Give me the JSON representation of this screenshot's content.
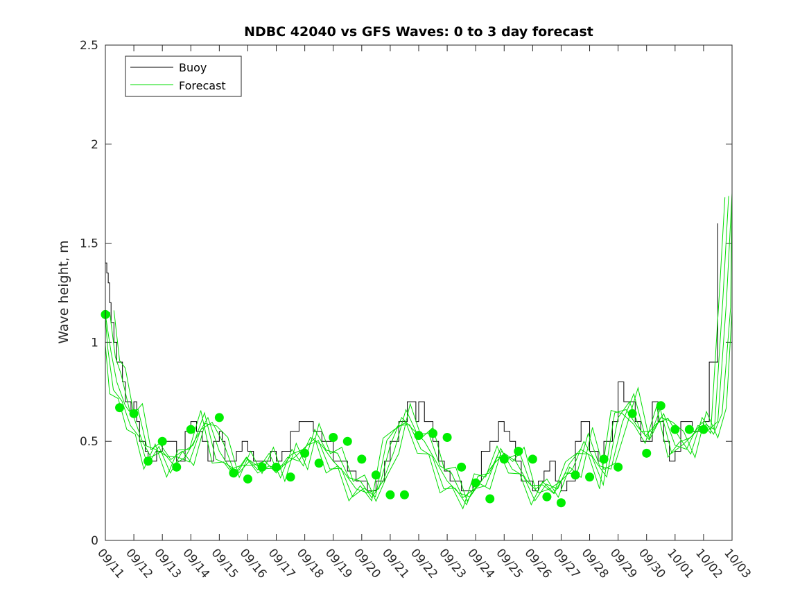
{
  "chart_data": {
    "type": "line",
    "title": "NDBC 42040 vs GFS Waves: 0 to 3 day forecast",
    "xlabel": "",
    "ylabel": "Wave height, m",
    "ylim": [
      0,
      2.5
    ],
    "yticks": [
      "0",
      "0.5",
      "1",
      "1.5",
      "2",
      "2.5"
    ],
    "yticks_values": [
      0,
      0.5,
      1,
      1.5,
      2,
      2.5
    ],
    "xlim_days": [
      0,
      22
    ],
    "xticks": [
      "09/11",
      "09/12",
      "09/13",
      "09/14",
      "09/15",
      "09/16",
      "09/17",
      "09/18",
      "09/19",
      "09/20",
      "09/21",
      "09/22",
      "09/23",
      "09/24",
      "09/25",
      "09/26",
      "09/27",
      "09/28",
      "09/29",
      "09/30",
      "10/01",
      "10/02",
      "10/03"
    ],
    "legend": {
      "position": "top-left",
      "entries": [
        {
          "label": "Buoy",
          "color": "#000000"
        },
        {
          "label": "Forecast",
          "color": "#00dd00"
        }
      ]
    },
    "colors": {
      "buoy": "#000000",
      "forecast": "#00dd00",
      "marker": "#00ee00"
    },
    "series": [
      {
        "name": "Buoy",
        "x": [
          0,
          0.05,
          0.1,
          0.15,
          0.2,
          0.3,
          0.4,
          0.5,
          0.6,
          0.7,
          0.8,
          0.9,
          1.0,
          1.1,
          1.2,
          1.3,
          1.4,
          1.5,
          1.6,
          1.8,
          2.0,
          2.2,
          2.5,
          2.8,
          3.0,
          3.2,
          3.4,
          3.6,
          3.8,
          4.0,
          4.1,
          4.2,
          4.4,
          4.6,
          4.8,
          5.0,
          5.2,
          5.4,
          5.6,
          5.8,
          6.0,
          6.2,
          6.5,
          6.8,
          7.0,
          7.3,
          7.6,
          8.0,
          8.2,
          8.5,
          8.8,
          9.0,
          9.2,
          9.5,
          9.8,
          10.0,
          10.3,
          10.6,
          10.9,
          11.0,
          11.2,
          11.5,
          11.7,
          11.9,
          12.1,
          12.3,
          12.5,
          12.7,
          12.9,
          13.2,
          13.5,
          13.8,
          14.0,
          14.2,
          14.4,
          14.6,
          14.8,
          15.0,
          15.2,
          15.4,
          15.6,
          15.8,
          16.0,
          16.2,
          16.5,
          16.7,
          17.0,
          17.3,
          17.5,
          17.8,
          18.0,
          18.2,
          18.4,
          18.6,
          18.8,
          19.0,
          19.2,
          19.4,
          19.6,
          19.8,
          20.0,
          20.2,
          20.4,
          20.6,
          20.8,
          21.0,
          21.2,
          21.5
        ],
        "y": [
          1.4,
          1.35,
          1.3,
          1.2,
          1.1,
          1.0,
          0.9,
          0.9,
          0.8,
          0.7,
          0.7,
          0.65,
          0.7,
          0.6,
          0.5,
          0.5,
          0.45,
          0.4,
          0.4,
          0.45,
          0.5,
          0.5,
          0.4,
          0.55,
          0.6,
          0.55,
          0.5,
          0.4,
          0.5,
          0.55,
          0.5,
          0.4,
          0.4,
          0.45,
          0.5,
          0.45,
          0.4,
          0.4,
          0.4,
          0.45,
          0.4,
          0.45,
          0.55,
          0.6,
          0.6,
          0.55,
          0.5,
          0.4,
          0.4,
          0.35,
          0.3,
          0.3,
          0.25,
          0.3,
          0.4,
          0.5,
          0.6,
          0.7,
          0.6,
          0.7,
          0.6,
          0.5,
          0.4,
          0.35,
          0.3,
          0.3,
          0.25,
          0.25,
          0.3,
          0.45,
          0.5,
          0.6,
          0.55,
          0.5,
          0.4,
          0.3,
          0.3,
          0.25,
          0.3,
          0.35,
          0.4,
          0.3,
          0.25,
          0.3,
          0.5,
          0.6,
          0.45,
          0.4,
          0.5,
          0.6,
          0.8,
          0.7,
          0.7,
          0.6,
          0.5,
          0.5,
          0.7,
          0.6,
          0.5,
          0.4,
          0.45,
          0.6,
          0.6,
          0.55,
          0.55,
          0.6,
          0.9,
          1.6
        ]
      },
      {
        "name": "Forecast",
        "x": [
          0,
          0.2,
          0.4,
          0.7,
          1.0,
          1.3,
          1.6,
          2.0,
          2.4,
          2.8,
          3.2,
          3.6,
          4.0,
          4.4,
          4.8,
          5.2,
          5.6,
          6.0,
          6.4,
          6.8,
          7.2,
          7.6,
          8.0,
          8.4,
          8.8,
          9.2,
          9.6,
          10.0,
          10.4,
          10.8,
          11.2,
          11.6,
          12.0,
          12.4,
          12.8,
          13.2,
          13.6,
          14.0,
          14.4,
          14.8,
          15.2,
          15.6,
          16.0,
          16.4,
          16.8,
          17.2,
          17.6,
          18.0,
          18.4,
          18.8,
          19.2,
          19.6,
          20.0,
          20.4,
          20.8,
          21.2,
          21.5,
          21.8,
          22.0
        ],
        "y": [
          1.14,
          0.95,
          0.8,
          0.68,
          0.62,
          0.5,
          0.42,
          0.45,
          0.38,
          0.42,
          0.52,
          0.62,
          0.45,
          0.36,
          0.38,
          0.38,
          0.4,
          0.34,
          0.42,
          0.4,
          0.52,
          0.48,
          0.4,
          0.34,
          0.26,
          0.24,
          0.26,
          0.48,
          0.62,
          0.56,
          0.5,
          0.4,
          0.3,
          0.24,
          0.22,
          0.3,
          0.38,
          0.44,
          0.4,
          0.3,
          0.24,
          0.26,
          0.3,
          0.36,
          0.5,
          0.4,
          0.32,
          0.62,
          0.7,
          0.55,
          0.55,
          0.64,
          0.48,
          0.46,
          0.58,
          0.56,
          0.6,
          1.2,
          1.75
        ]
      }
    ],
    "forecast_markers": {
      "x": [
        0,
        0.5,
        1.0,
        1.5,
        2.0,
        2.5,
        3.0,
        4.0,
        4.5,
        5.0,
        5.5,
        6.0,
        6.5,
        7.0,
        7.5,
        8.0,
        8.5,
        9.0,
        9.5,
        10.0,
        10.5,
        11.0,
        11.5,
        12.0,
        12.5,
        13.0,
        13.5,
        14.0,
        14.5,
        15.0,
        15.5,
        16.0,
        16.5,
        17.0,
        17.5,
        18.0,
        18.5,
        19.0,
        19.5,
        20.0,
        20.5,
        21.0
      ],
      "y": [
        1.14,
        0.67,
        0.64,
        0.4,
        0.5,
        0.37,
        0.56,
        0.62,
        0.34,
        0.31,
        0.37,
        0.37,
        0.32,
        0.44,
        0.39,
        0.52,
        0.5,
        0.41,
        0.33,
        0.23,
        0.23,
        0.53,
        0.54,
        0.52,
        0.37,
        0.29,
        0.21,
        0.41,
        0.45,
        0.41,
        0.22,
        0.19,
        0.33,
        0.32,
        0.41,
        0.37,
        0.64,
        0.44,
        0.68,
        0.56,
        0.56,
        0.56
      ]
    }
  }
}
